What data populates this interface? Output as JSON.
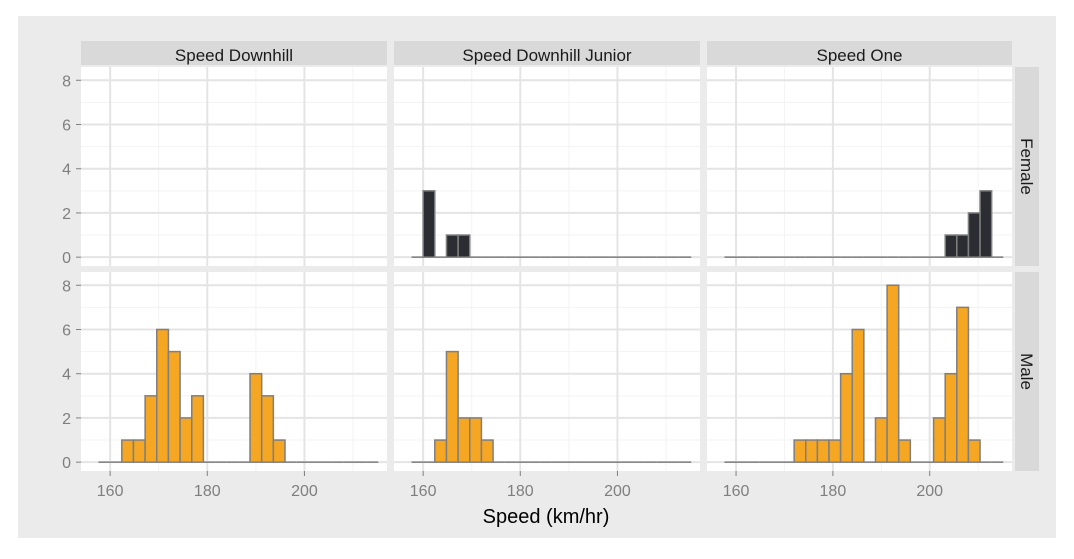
{
  "chart_data": {
    "type": "bar",
    "xlabel": "Speed (km/hr)",
    "ylabel": "",
    "xlim": [
      154,
      217
    ],
    "ylim": [
      -0.4,
      8.6
    ],
    "x_ticks": [
      160,
      180,
      200
    ],
    "y_ticks": [
      0,
      2,
      4,
      6,
      8
    ],
    "bin_width": 2.4,
    "bin_start": 157.6,
    "bins_count": 24,
    "facet_columns": [
      "Speed Downhill",
      "Speed Downhill Junior",
      "Speed One"
    ],
    "facet_rows": [
      "Female",
      "Male"
    ],
    "fill_colors": {
      "Female": "#2b2d33",
      "Male": "#f5a623"
    },
    "panels": [
      {
        "row": "Female",
        "col": "Speed Downhill",
        "counts": null
      },
      {
        "row": "Female",
        "col": "Speed Downhill Junior",
        "counts": [
          0,
          3,
          0,
          1,
          1,
          0,
          0,
          0,
          0,
          0,
          0,
          0,
          0,
          0,
          0,
          0,
          0,
          0,
          0,
          0,
          0,
          0,
          0,
          0
        ]
      },
      {
        "row": "Female",
        "col": "Speed One",
        "counts": [
          0,
          0,
          0,
          0,
          0,
          0,
          0,
          0,
          0,
          0,
          0,
          0,
          0,
          0,
          0,
          0,
          0,
          0,
          0,
          1,
          1,
          2,
          3,
          0
        ]
      },
      {
        "row": "Male",
        "col": "Speed Downhill",
        "counts": [
          0,
          0,
          1,
          1,
          3,
          6,
          5,
          2,
          3,
          0,
          0,
          0,
          0,
          4,
          3,
          1,
          0,
          0,
          0,
          0,
          0,
          0,
          0,
          0
        ]
      },
      {
        "row": "Male",
        "col": "Speed Downhill Junior",
        "counts": [
          0,
          0,
          1,
          5,
          2,
          2,
          1,
          0,
          0,
          0,
          0,
          0,
          0,
          0,
          0,
          0,
          0,
          0,
          0,
          0,
          0,
          0,
          0,
          0
        ]
      },
      {
        "row": "Male",
        "col": "Speed One",
        "counts": [
          0,
          0,
          0,
          0,
          0,
          0,
          1,
          1,
          1,
          1,
          4,
          6,
          0,
          2,
          8,
          1,
          0,
          0,
          2,
          4,
          7,
          1,
          0,
          0
        ]
      }
    ]
  }
}
